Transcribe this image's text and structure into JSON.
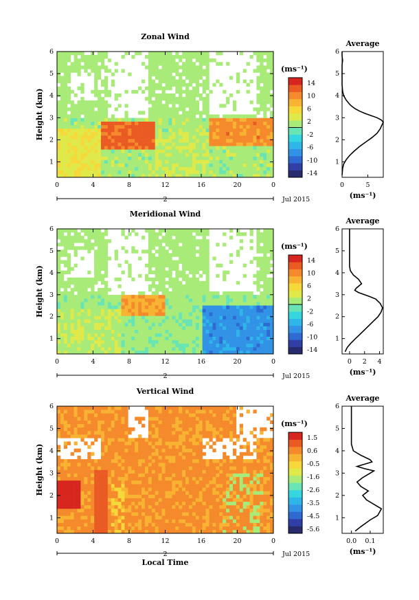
{
  "figure": {
    "xlabel": "Local Time",
    "ylabel": "Height (km)",
    "date_label": "Jul 2015",
    "day_label": "2",
    "x_ticks": [
      "0",
      "4",
      "8",
      "12",
      "16",
      "20",
      "0"
    ],
    "y_ticks": [
      "1",
      "2",
      "3",
      "4",
      "5",
      "6"
    ],
    "unit": "(ms⁻¹)",
    "profile_title": "Average"
  },
  "colors": {
    "scale": [
      "#272b6e",
      "#2f3fa6",
      "#2f6ad3",
      "#3192e6",
      "#2fb6e8",
      "#35d6e0",
      "#69e4b4",
      "#a8eb78",
      "#dfe94a",
      "#f7d83a",
      "#f7b331",
      "#f58a2c",
      "#ea5b24",
      "#d6261f"
    ],
    "background": "#ffffff",
    "contour": "#000000"
  },
  "chart_data": [
    {
      "type": "heatmap",
      "title": "Zonal Wind",
      "xlabel": "",
      "ylabel": "Height (km)",
      "xlim": [
        0,
        24
      ],
      "ylim": [
        0.3,
        6
      ],
      "colorbar_unit": "(ms⁻¹)",
      "colorbar_ticks": [
        "14",
        "10",
        "6",
        "2",
        "-2",
        "-6",
        "-10",
        "-14"
      ],
      "colorbar_range": [
        -16,
        16
      ],
      "description_values": {
        "low_levels_bands": [
          {
            "time_start": 0,
            "time_end": 5,
            "height_start": 0.3,
            "height_end": 2.5,
            "value": 4
          },
          {
            "time_start": 5,
            "time_end": 11,
            "height_start": 1.5,
            "height_end": 2.8,
            "value": 12
          },
          {
            "time_start": 11,
            "time_end": 17,
            "height_start": 0.3,
            "height_end": 2.3,
            "value": 2
          },
          {
            "time_start": 17,
            "time_end": 24,
            "height_start": 1.8,
            "height_end": 3.0,
            "value": 10
          }
        ]
      }
    },
    {
      "type": "line",
      "title": "Average",
      "xlabel": "(ms⁻¹)",
      "ylabel": "",
      "xlim": [
        0,
        8
      ],
      "ylim": [
        0.3,
        6
      ],
      "x_ticks": [
        "0",
        "5"
      ],
      "y_ticks": [
        "1",
        "2",
        "3",
        "4",
        "5",
        "6"
      ],
      "series": [
        {
          "x": [
            0.0,
            0.1,
            0.3,
            0.8,
            1.5,
            2.4,
            3.4,
            4.6,
            5.8,
            6.8,
            7.4,
            7.8,
            8.0,
            7.6,
            6.8,
            5.6,
            4.4,
            3.4,
            2.6,
            2.0,
            1.5,
            0.8,
            0.3,
            0.1,
            0.0,
            0.0,
            0.0,
            0.0,
            0.1,
            0.0,
            0.0
          ],
          "y": [
            0.4,
            0.7,
            0.9,
            1.1,
            1.3,
            1.5,
            1.7,
            1.9,
            2.1,
            2.3,
            2.5,
            2.7,
            2.8,
            2.9,
            3.0,
            3.1,
            3.2,
            3.3,
            3.4,
            3.5,
            3.6,
            3.8,
            4.0,
            4.2,
            4.5,
            4.8,
            5.1,
            5.4,
            5.6,
            5.8,
            6.0
          ]
        }
      ]
    },
    {
      "type": "heatmap",
      "title": "Meridional Wind",
      "xlabel": "",
      "ylabel": "Height (km)",
      "xlim": [
        0,
        24
      ],
      "ylim": [
        0.3,
        6
      ],
      "colorbar_unit": "(ms⁻¹)",
      "colorbar_ticks": [
        "14",
        "10",
        "6",
        "2",
        "-2",
        "-6",
        "-10",
        "-14"
      ],
      "colorbar_range": [
        -16,
        16
      ],
      "description_values": {
        "low_levels_bands": [
          {
            "time_start": 0,
            "time_end": 7,
            "height_start": 0.3,
            "height_end": 2.4,
            "value": 2
          },
          {
            "time_start": 7,
            "time_end": 12,
            "height_start": 2.0,
            "height_end": 3.0,
            "value": 9
          },
          {
            "time_start": 16,
            "time_end": 24,
            "height_start": 0.3,
            "height_end": 2.5,
            "value": -8
          }
        ]
      }
    },
    {
      "type": "line",
      "title": "Average",
      "xlabel": "(ms⁻¹)",
      "ylabel": "",
      "xlim": [
        -1,
        4.5
      ],
      "ylim": [
        0.3,
        6
      ],
      "x_ticks": [
        "0",
        "2",
        "4"
      ],
      "y_ticks": [
        "1",
        "2",
        "3",
        "4",
        "5",
        "6"
      ],
      "series": [
        {
          "x": [
            -0.6,
            -0.3,
            0.2,
            0.8,
            1.4,
            2.0,
            2.6,
            3.2,
            3.8,
            4.2,
            4.4,
            4.1,
            3.5,
            2.8,
            2.0,
            1.2,
            0.7,
            0.9,
            1.6,
            1.2,
            0.5,
            0.1,
            0.0,
            0.0,
            0.0,
            0.0,
            0.0,
            0.0
          ],
          "y": [
            0.4,
            0.6,
            0.8,
            1.0,
            1.2,
            1.4,
            1.6,
            1.8,
            2.0,
            2.2,
            2.4,
            2.6,
            2.8,
            2.9,
            3.0,
            3.1,
            3.2,
            3.3,
            3.5,
            3.7,
            3.9,
            4.1,
            4.3,
            4.6,
            5.0,
            5.4,
            5.7,
            6.0
          ]
        }
      ]
    },
    {
      "type": "heatmap",
      "title": "Vertical Wind",
      "xlabel": "Local Time",
      "ylabel": "Height (km)",
      "xlim": [
        0,
        24
      ],
      "ylim": [
        0.3,
        6
      ],
      "colorbar_unit": "(ms⁻¹)",
      "colorbar_ticks": [
        "1.5",
        "0.6",
        "-0.5",
        "-1.6",
        "-2.6",
        "-3.5",
        "-4.5",
        "-5.6"
      ],
      "colorbar_range": [
        -6.0,
        2.0
      ],
      "description_values": {
        "background_value": 0.4
      }
    },
    {
      "type": "line",
      "title": "Average",
      "xlabel": "(ms⁻¹)",
      "ylabel": "",
      "xlim": [
        -0.05,
        0.17
      ],
      "ylim": [
        0.3,
        6
      ],
      "x_ticks": [
        "0.0",
        "0.1"
      ],
      "y_ticks": [
        "1",
        "2",
        "3",
        "4",
        "5",
        "6"
      ],
      "series": [
        {
          "x": [
            0.02,
            0.05,
            0.1,
            0.14,
            0.16,
            0.12,
            0.08,
            0.06,
            0.09,
            0.05,
            0.03,
            0.06,
            0.1,
            0.12,
            0.07,
            0.03,
            0.07,
            0.11,
            0.1,
            0.05,
            0.01,
            0.0,
            0.0,
            0.0,
            0.0,
            0.0,
            0.0,
            0.0
          ],
          "y": [
            0.4,
            0.6,
            0.9,
            1.1,
            1.4,
            1.6,
            1.8,
            2.0,
            2.2,
            2.4,
            2.6,
            2.8,
            3.0,
            3.1,
            3.2,
            3.3,
            3.4,
            3.5,
            3.6,
            3.8,
            4.0,
            4.3,
            4.6,
            5.0,
            5.3,
            5.6,
            5.8,
            6.0
          ]
        }
      ]
    }
  ]
}
